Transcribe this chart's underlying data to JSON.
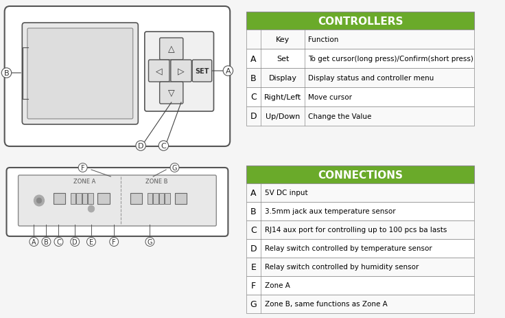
{
  "bg_color": "#f5f5f5",
  "green_color": "#6aaa2a",
  "table_border_color": "#888888",
  "header_text_color": "#ffffff",
  "controllers_title": "CONTROLLERS",
  "controllers_col1": [
    "",
    "A",
    "B",
    "C",
    "D"
  ],
  "controllers_col2": [
    "Key",
    "Set",
    "Display",
    "Right/Left",
    "Up/Down"
  ],
  "controllers_col3": [
    "Function",
    "To get cursor(long press)/Confirm(short press)",
    "Display status and controller menu",
    "Move cursor",
    "Change the Value"
  ],
  "connections_title": "CONNECTIONS",
  "connections_col1": [
    "A",
    "B",
    "C",
    "D",
    "E",
    "F",
    "G"
  ],
  "connections_col2": [
    "5V DC input",
    "3.5mm jack aux temperature sensor",
    "RJ14 aux port for controlling up to 100 pcs ba lasts",
    "Relay switch controlled by temperature sensor",
    "Relay switch controlled by humidity sensor",
    "Zone A",
    "Zone B, same functions as Zone A"
  ]
}
